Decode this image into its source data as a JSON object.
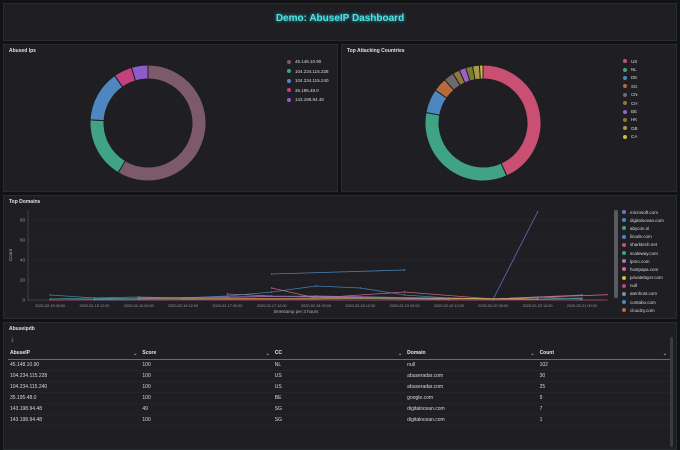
{
  "dashboard": {
    "title": "Demo: AbuseIP Dashboard"
  },
  "panels": {
    "abused_ips": {
      "title": "Abused Ips"
    },
    "top_countries": {
      "title": "Top Attacking Countries"
    },
    "top_domains": {
      "title": "Top Domains"
    },
    "abuseipdb": {
      "title": "Abuseipdb"
    }
  },
  "chart_data": [
    {
      "type": "pie",
      "title": "Abused Ips",
      "donut": true,
      "legend_position": "right",
      "labels": [
        "45.148.10.90",
        "104.234.115.228",
        "104.234.115.240",
        "35.195.48.0",
        "143.198.94.48"
      ],
      "values": [
        102,
        30,
        25,
        9,
        8
      ],
      "colors": [
        "#7c5a6c",
        "#3fa384",
        "#4e86c0",
        "#c2417e",
        "#8e5cc8"
      ]
    },
    {
      "type": "pie",
      "title": "Top Attacking Countries",
      "donut": true,
      "legend_position": "right",
      "labels": [
        "US",
        "NL",
        "DE",
        "SG",
        "CN",
        "CH",
        "BE",
        "HK",
        "GB",
        "CA"
      ],
      "values": [
        45,
        36,
        7,
        4,
        3,
        2,
        2,
        2,
        2,
        1
      ],
      "colors": [
        "#c94f73",
        "#3fa384",
        "#4e86c0",
        "#b86a3a",
        "#6e6a6b",
        "#8c7a3d",
        "#9c60c8",
        "#7a7e2c",
        "#a69a4c",
        "#d9b83a"
      ]
    },
    {
      "type": "line",
      "title": "Top Domains",
      "xlabel": "timestamp per 3 hours",
      "ylabel": "Count",
      "ylim": [
        0,
        90
      ],
      "yticks": [
        0,
        20,
        40,
        60,
        80
      ],
      "grid": true,
      "legend_position": "right",
      "categories": [
        "2020-02-15 00:00",
        "2020-02-15 12:00",
        "2020-02-16 00:00",
        "2020-02-16 12:00",
        "2020-02-17 00:00",
        "2020-02-17 12:00",
        "2020-02-18 00:00",
        "2020-02-18 12:00",
        "2020-02-19 00:00",
        "2020-02-19 12:00",
        "2020-02-20 00:00",
        "2020-02-20 12:00",
        "2020-02-21 00:00"
      ],
      "series": [
        {
          "name": "microsoft.com",
          "color": "#7a6cc8",
          "points": [
            [
              10,
              1
            ],
            [
              11,
              88
            ]
          ]
        },
        {
          "name": "digitalocean.com",
          "color": "#4e86c0",
          "points": [
            [
              0,
              5
            ],
            [
              1,
              2
            ],
            [
              2,
              1
            ],
            [
              3,
              2
            ],
            [
              4,
              4
            ],
            [
              5,
              8
            ],
            [
              6,
              14
            ],
            [
              7,
              12
            ],
            [
              8,
              5
            ],
            [
              9,
              2
            ],
            [
              10,
              1
            ],
            [
              11,
              3
            ],
            [
              12,
              1
            ]
          ]
        },
        {
          "name": "abycon.nl",
          "color": "#3fa384",
          "points": [
            [
              0,
              1
            ],
            [
              2,
              3
            ],
            [
              4,
              1
            ],
            [
              6,
              2
            ],
            [
              8,
              1
            ],
            [
              10,
              0
            ],
            [
              12,
              2
            ]
          ]
        },
        {
          "name": "linode.com",
          "color": "#4e86c0",
          "points": [
            [
              5,
              26
            ],
            [
              8,
              30
            ]
          ]
        },
        {
          "name": "sharktech.net",
          "color": "#c94f73",
          "points": [
            [
              0,
              0
            ],
            [
              3,
              2
            ],
            [
              5,
              1
            ],
            [
              7,
              3
            ],
            [
              9,
              0
            ],
            [
              11,
              1
            ]
          ]
        },
        {
          "name": "scaleway.com",
          "color": "#3fa384",
          "points": [
            [
              1,
              1
            ],
            [
              4,
              2
            ],
            [
              6,
              1
            ],
            [
              9,
              2
            ],
            [
              12,
              0
            ]
          ]
        },
        {
          "name": "lpmo.com",
          "color": "#b070c8",
          "points": [
            [
              2,
              2
            ],
            [
              6,
              4
            ],
            [
              10,
              1
            ],
            [
              12,
              5
            ]
          ]
        },
        {
          "name": "hostpapa.com",
          "color": "#d46a8a",
          "points": [
            [
              5,
              12
            ],
            [
              6,
              2
            ],
            [
              8,
              8
            ],
            [
              10,
              1
            ],
            [
              13,
              6
            ]
          ]
        },
        {
          "name": "privatelayer.com",
          "color": "#d9b83a",
          "points": [
            [
              3,
              1
            ],
            [
              7,
              2
            ],
            [
              11,
              1
            ]
          ]
        },
        {
          "name": "null",
          "color": "#c2417e",
          "points": [
            [
              0,
              0
            ],
            [
              13,
              0
            ]
          ]
        },
        {
          "name": "atenhost.com",
          "color": "#8888aa",
          "points": [
            [
              4,
              6
            ],
            [
              5,
              4
            ],
            [
              9,
              1
            ]
          ]
        },
        {
          "name": "contabo.com",
          "color": "#4e86c0",
          "points": [
            [
              1,
              0
            ],
            [
              6,
              1
            ]
          ]
        },
        {
          "name": "cloudzy.com",
          "color": "#b86a3a",
          "points": [
            [
              2,
              1
            ],
            [
              8,
              2
            ]
          ]
        }
      ]
    },
    {
      "type": "table",
      "title": "Abuseipdb",
      "columns": [
        "AbuseIP",
        "Score",
        "CC",
        "Domain",
        "Count"
      ],
      "rows": [
        [
          "45.148.10.90",
          "100",
          "NL",
          "null",
          "102"
        ],
        [
          "104.234.115.228",
          "100",
          "US",
          "abuseradar.com",
          "30"
        ],
        [
          "104.234.115.240",
          "100",
          "US",
          "abuseradar.com",
          "25"
        ],
        [
          "35.195.48.0",
          "100",
          "BE",
          "google.com",
          "9"
        ],
        [
          "143.198.94.48",
          "49",
          "SG",
          "digitalocean.com",
          "7"
        ],
        [
          "143.198.94.48",
          "100",
          "SG",
          "digitalocean.com",
          "1"
        ]
      ]
    }
  ],
  "icons": {
    "table_toolbar": "download-icon",
    "column_sort": "chevron-down-icon"
  }
}
